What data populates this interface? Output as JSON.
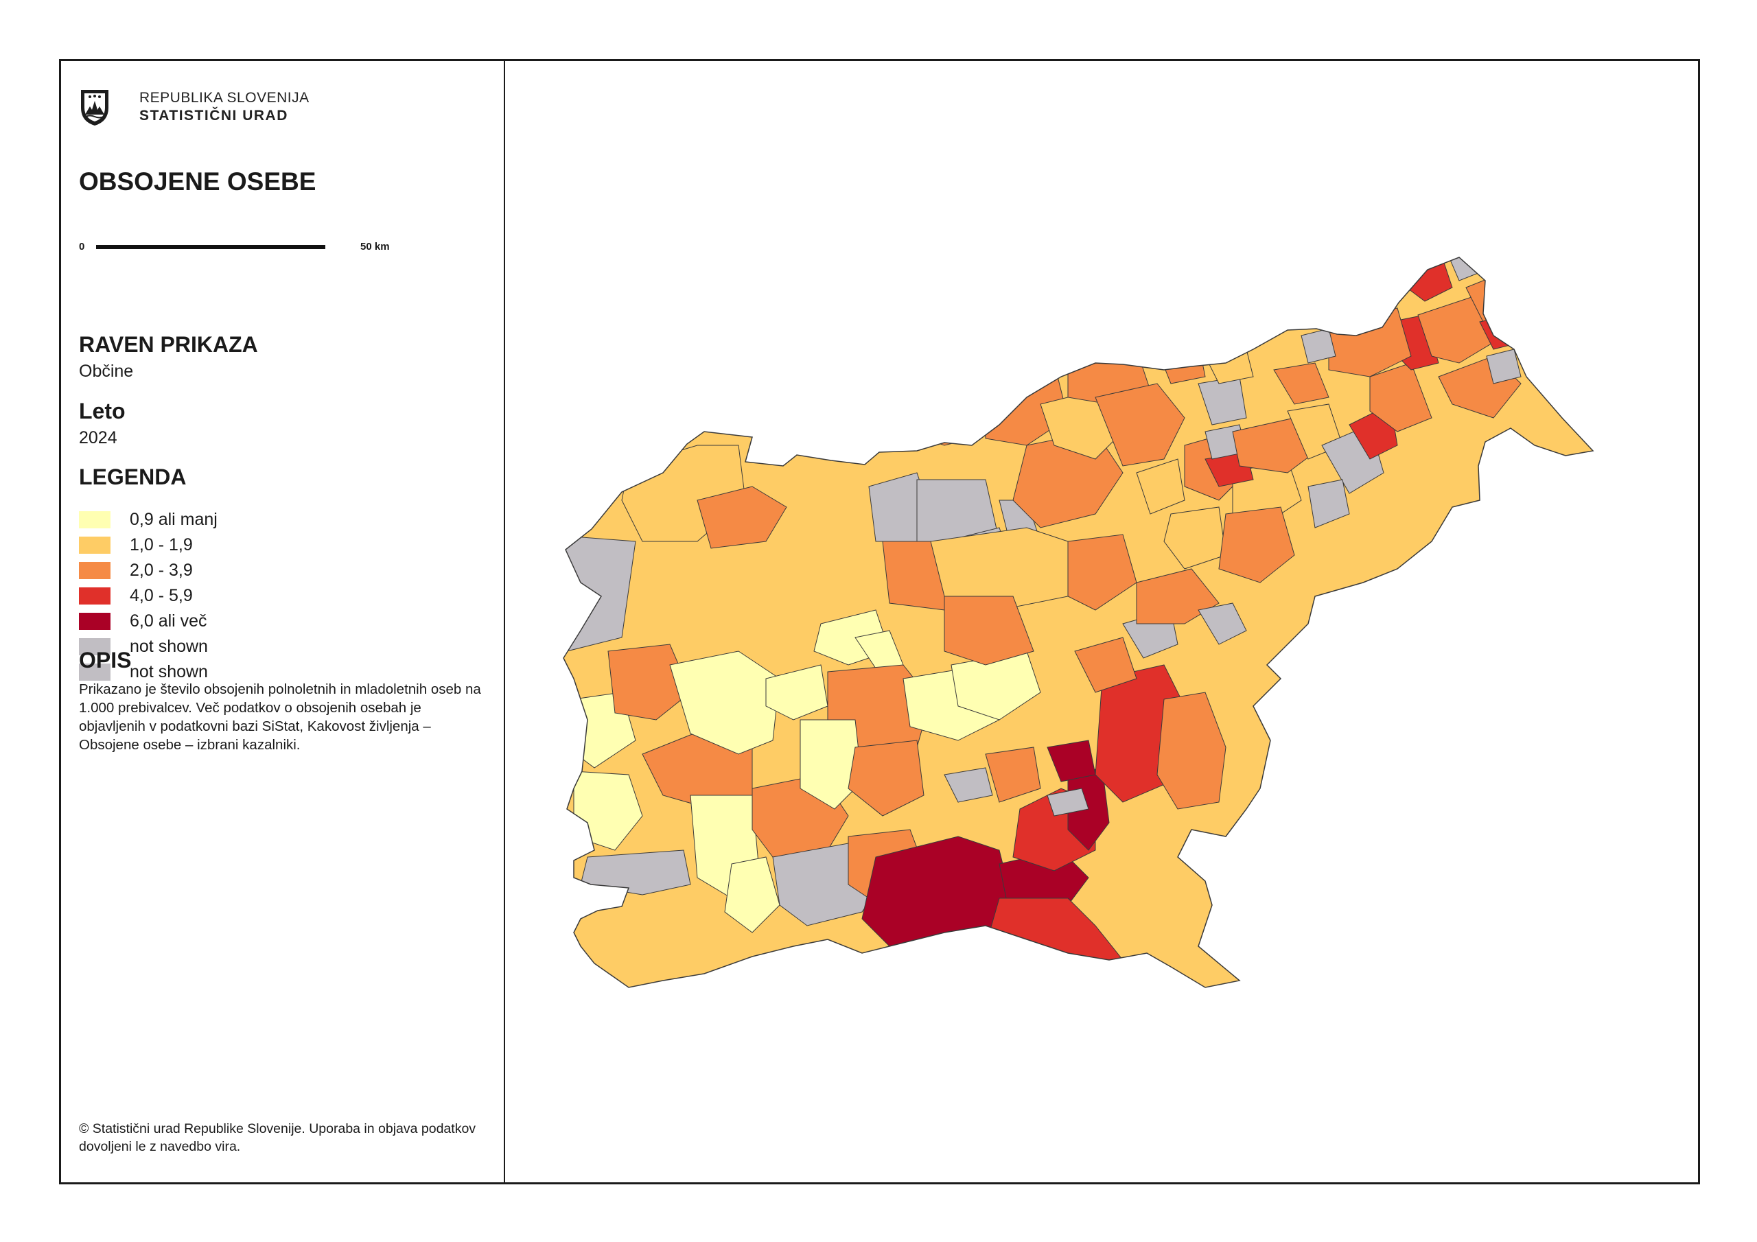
{
  "header": {
    "org_line1": "REPUBLIKA SLOVENIJA",
    "org_line2": "STATISTIČNI URAD",
    "logo_icon": "coat-of-arms-icon"
  },
  "title": "OBSOJENE OSEBE",
  "scale": {
    "start": "0",
    "end": "50 km"
  },
  "display_level": {
    "heading": "RAVEN PRIKAZA",
    "value": "Občine"
  },
  "year": {
    "heading": "Leto",
    "value": "2024"
  },
  "legend": {
    "heading": "LEGENDA",
    "items": [
      {
        "label": "0,9 ali manj",
        "color": "#ffffb2"
      },
      {
        "label": "1,0 - 1,9",
        "color": "#fecc65"
      },
      {
        "label": "2,0 - 3,9",
        "color": "#f58a45"
      },
      {
        "label": "4,0 - 5,9",
        "color": "#e0302a"
      },
      {
        "label": "6,0 ali več",
        "color": "#aa0126"
      },
      {
        "label": "not shown",
        "color": "#c1bec3"
      },
      {
        "label": "not shown",
        "color": "#c1bec3"
      }
    ]
  },
  "description": {
    "heading": "OPIS",
    "text": "Prikazano je število obsojenih polnoletnih in mladoletnih oseb na 1.000 prebivalcev. Več podatkov o obsojenih osebah je objavljenih v podatkovni bazi SiStat, Kakovost življenja – Obsojene osebe – izbrani kazalniki."
  },
  "copyright": "© Statistični urad Republike Slovenije. Uporaba in objava podatkov dovoljeni le z navedbo vira.",
  "map": {
    "outline_color": "#3a3a3a",
    "classes": {
      "c1": "#ffffb2",
      "c2": "#fecc65",
      "c3": "#f58a45",
      "c4": "#e0302a",
      "c5": "#aa0126",
      "na": "#c1bec3"
    }
  }
}
